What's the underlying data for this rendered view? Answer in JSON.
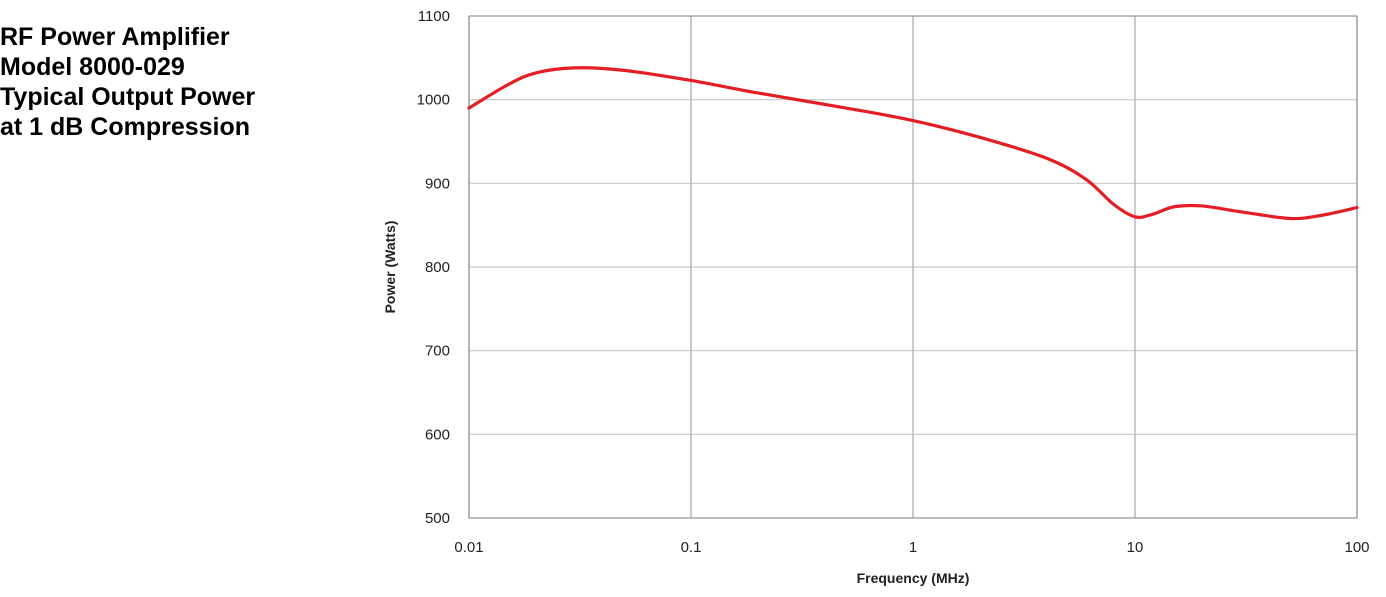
{
  "title_lines": [
    "RF Power Amplifier",
    "Model 8000-029",
    "Typical Output Power",
    "at 1 dB Compression"
  ],
  "chart_data": {
    "type": "line",
    "xscale": "log",
    "xlim": [
      0.01,
      100
    ],
    "ylim": [
      500,
      1100
    ],
    "xticks": [
      0.01,
      0.1,
      1,
      10,
      100
    ],
    "xtick_labels": [
      "0.01",
      "0.1",
      "1",
      "10",
      "100"
    ],
    "yticks": [
      500,
      600,
      700,
      800,
      900,
      1000,
      1100
    ],
    "ytick_labels": [
      "500",
      "600",
      "700",
      "800",
      "900",
      "1000",
      "1100"
    ],
    "xlabel": "Frequency (MHz)",
    "ylabel": "Power (Watts)",
    "grid": true,
    "series": [
      {
        "color": "#e31e24",
        "x": [
          0.01,
          0.015,
          0.02,
          0.03,
          0.05,
          0.1,
          0.2,
          0.5,
          1,
          2,
          4,
          6,
          8,
          10,
          12,
          15,
          20,
          30,
          50,
          70,
          100
        ],
        "y": [
          990,
          1018,
          1032,
          1038,
          1035,
          1023,
          1008,
          990,
          975,
          955,
          930,
          905,
          875,
          860,
          863,
          872,
          873,
          866,
          858,
          862,
          871
        ]
      }
    ]
  }
}
